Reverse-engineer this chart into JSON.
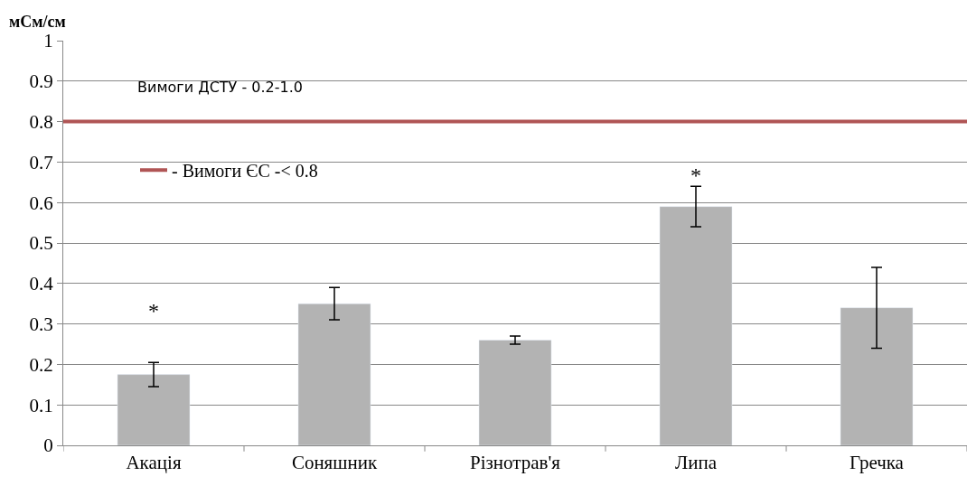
{
  "chart_data": {
    "type": "bar",
    "ylabel": "мСм/см",
    "categories": [
      "Акація",
      "Соняшник",
      "Різнотрав'я",
      "Липа",
      "Гречка"
    ],
    "values": [
      0.175,
      0.35,
      0.26,
      0.59,
      0.34
    ],
    "errors": [
      0.03,
      0.04,
      0.01,
      0.05,
      0.1
    ],
    "color": "#b3b3b3",
    "ylim": [
      0,
      1
    ],
    "yticks": [
      0,
      0.1,
      0.2,
      0.3,
      0.4,
      0.5,
      0.6,
      0.7,
      0.8,
      0.9,
      1
    ],
    "grid": "y",
    "legend": "top left",
    "ref_lines": [
      {
        "axis": "y",
        "value": 0.8,
        "label": "- Вимоги ЄС -< 0.8",
        "color": "#b05555"
      }
    ],
    "annotations": [
      "Вимоги ДСТУ - 0.2-1.0",
      "*",
      "*"
    ]
  }
}
